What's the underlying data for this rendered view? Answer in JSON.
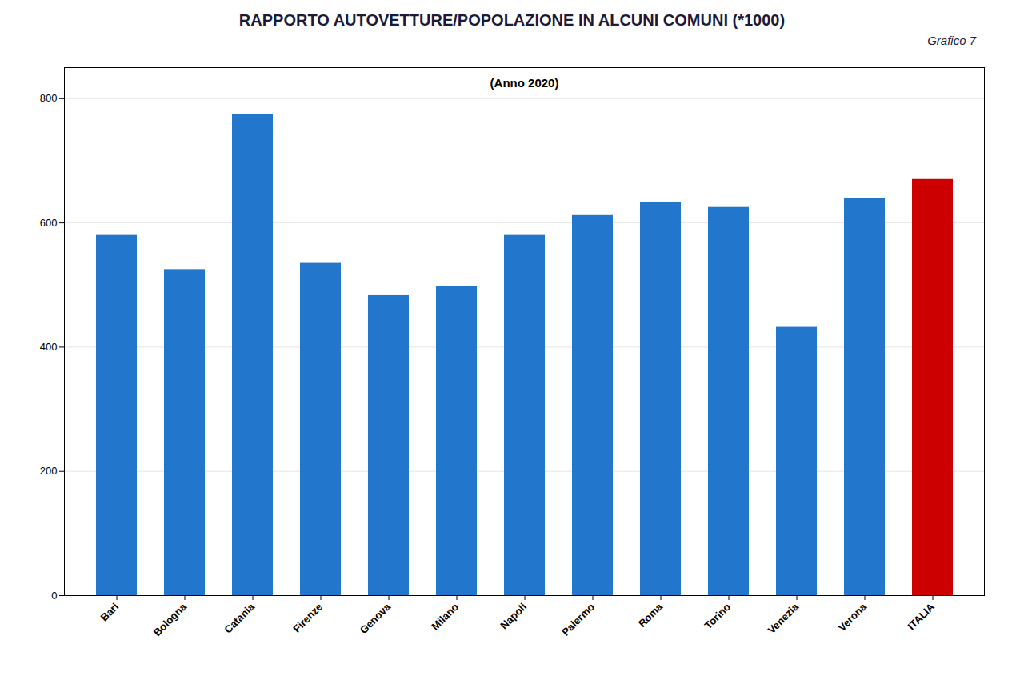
{
  "chart_data": {
    "type": "bar",
    "title": "RAPPORTO AUTOVETTURE/POPOLAZIONE IN ALCUNI COMUNI (*1000)",
    "subtitle": "(Anno 2020)",
    "annotations": [
      "Grafico 7"
    ],
    "categories": [
      "Bari",
      "Bologna",
      "Catania",
      "Firenze",
      "Genova",
      "Milano",
      "Napoli",
      "Palermo",
      "Roma",
      "Torino",
      "Venezia",
      "Verona",
      "ITALIA"
    ],
    "values": [
      580,
      525,
      775,
      535,
      483,
      498,
      580,
      612,
      633,
      625,
      432,
      640,
      670
    ],
    "colors": [
      "#2277CC",
      "#2277CC",
      "#2277CC",
      "#2277CC",
      "#2277CC",
      "#2277CC",
      "#2277CC",
      "#2277CC",
      "#2277CC",
      "#2277CC",
      "#2277CC",
      "#2277CC",
      "#CC0000"
    ],
    "ylim": [
      0,
      850
    ],
    "yticks": [
      0,
      200,
      400,
      600,
      800
    ],
    "grid": true
  }
}
